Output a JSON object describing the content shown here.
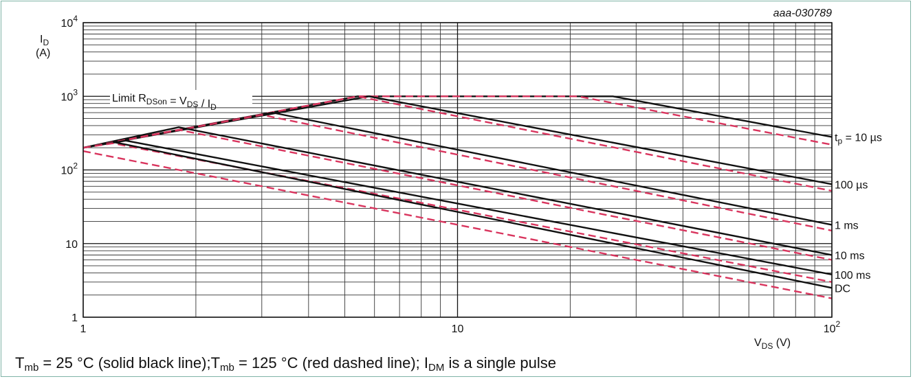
{
  "chart_data": {
    "type": "line",
    "figure_id": "aaa-030789",
    "ylabel_main": "I",
    "ylabel_sub": "D",
    "ylabel_unit": "(A)",
    "xlabel_main": "V",
    "xlabel_sub": "DS",
    "xlabel_unit": " (V)",
    "x_scale": "log",
    "y_scale": "log",
    "xlim": [
      1,
      100
    ],
    "ylim": [
      1,
      10000
    ],
    "grid": true,
    "x_ticks": [
      {
        "v": 1,
        "base": "1",
        "exp": ""
      },
      {
        "v": 10,
        "base": "10",
        "exp": ""
      },
      {
        "v": 100,
        "base": "10",
        "exp": "2"
      }
    ],
    "y_ticks": [
      {
        "v": 1,
        "base": "1",
        "exp": ""
      },
      {
        "v": 10,
        "base": "10",
        "exp": ""
      },
      {
        "v": 100,
        "base": "10",
        "exp": "2"
      },
      {
        "v": 1000,
        "base": "10",
        "exp": "3"
      },
      {
        "v": 10000,
        "base": "10",
        "exp": "4"
      }
    ],
    "limit_annotation": {
      "prefix": "Limit R",
      "sub1": "DSon",
      "mid": " = V",
      "sub2": "DS",
      "mid2": " / I",
      "sub3": "D"
    },
    "series": [
      {
        "label_base": "t",
        "label_sub": "p",
        "label_rest": " = 10 µs",
        "temp": "25",
        "points": [
          [
            1,
            200
          ],
          [
            5.4,
            1000
          ],
          [
            26,
            1000
          ],
          [
            100,
            280
          ]
        ]
      },
      {
        "temp": "125",
        "points": [
          [
            1,
            200
          ],
          [
            5.4,
            1000
          ],
          [
            21,
            1000
          ],
          [
            100,
            220
          ]
        ]
      },
      {
        "label_base": "100 µs",
        "temp": "25",
        "points": [
          [
            1,
            200
          ],
          [
            5.8,
            1000
          ],
          [
            100,
            64
          ]
        ]
      },
      {
        "temp": "125",
        "points": [
          [
            1,
            200
          ],
          [
            5.4,
            1000
          ],
          [
            100,
            52
          ]
        ]
      },
      {
        "label_base": "1 ms",
        "temp": "25",
        "points": [
          [
            1,
            200
          ],
          [
            3.2,
            600
          ],
          [
            100,
            18
          ]
        ]
      },
      {
        "temp": "125",
        "points": [
          [
            1,
            200
          ],
          [
            3.0,
            560
          ],
          [
            100,
            15
          ]
        ]
      },
      {
        "label_base": "10 ms",
        "temp": "25",
        "points": [
          [
            1,
            200
          ],
          [
            1.8,
            380
          ],
          [
            100,
            7
          ]
        ]
      },
      {
        "temp": "125",
        "points": [
          [
            1,
            200
          ],
          [
            1.8,
            350
          ],
          [
            100,
            6
          ]
        ]
      },
      {
        "label_base": "100 ms",
        "temp": "25",
        "points": [
          [
            1,
            200
          ],
          [
            1.3,
            250
          ],
          [
            100,
            3.8
          ]
        ]
      },
      {
        "temp": "125",
        "points": [
          [
            1,
            200
          ],
          [
            1.2,
            230
          ],
          [
            100,
            3.0
          ]
        ]
      },
      {
        "label_base": "DC",
        "temp": "25",
        "points": [
          [
            1.2,
            240
          ],
          [
            100,
            2.5
          ]
        ]
      },
      {
        "temp": "125",
        "points": [
          [
            1,
            180
          ],
          [
            100,
            1.8
          ]
        ]
      }
    ],
    "colors": {
      "solid": "#111111",
      "dashed": "#d9355e",
      "grid": "#333333"
    }
  },
  "caption": {
    "t1": "T",
    "t1_sub": "mb",
    "t1_rest": " = 25 °C (solid black line);T",
    "t2_sub": "mb",
    "t2_rest": " = 125 °C (red dashed line); I",
    "i_sub": "DM",
    "tail": " is a single pulse"
  }
}
